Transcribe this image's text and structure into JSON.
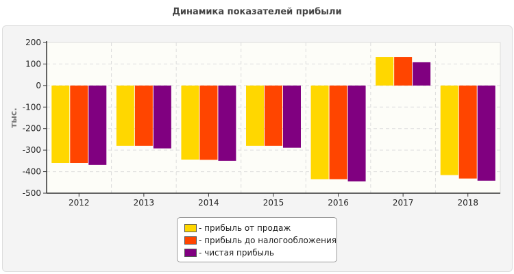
{
  "chart_data": {
    "type": "bar",
    "title": "Динамика показателей прибыли",
    "ylabel": "тыс.",
    "xlabel": "",
    "categories": [
      "2012",
      "2013",
      "2014",
      "2015",
      "2016",
      "2017",
      "2018"
    ],
    "ylim": [
      -500,
      200
    ],
    "yticks": [
      200,
      100,
      0,
      -100,
      -200,
      -300,
      -400,
      -500
    ],
    "grid": true,
    "legend_position": "bottom",
    "series": [
      {
        "name": "- прибыль от продаж",
        "color": "#FFD700",
        "values": [
          -360,
          -280,
          -344,
          -280,
          -435,
          133,
          -416
        ]
      },
      {
        "name": "- прибыль до налогообложения",
        "color": "#FF4500",
        "values": [
          -360,
          -280,
          -345,
          -280,
          -435,
          133,
          -432
        ]
      },
      {
        "name": "- чистая прибыль",
        "color": "#800080",
        "values": [
          -369,
          -292,
          -350,
          -289,
          -445,
          108,
          -442
        ]
      }
    ]
  }
}
